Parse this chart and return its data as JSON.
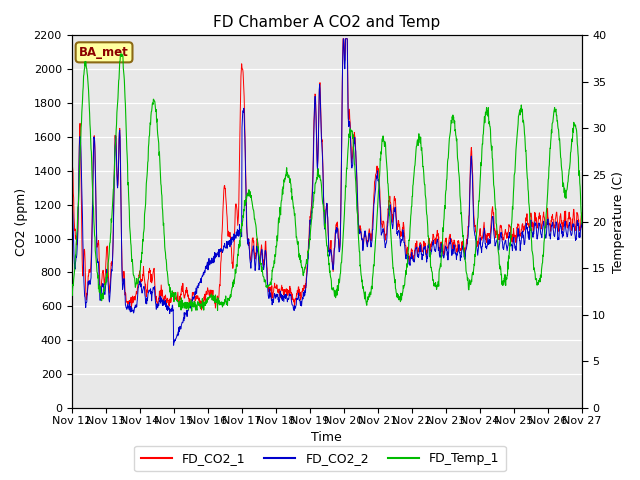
{
  "title": "FD Chamber A CO2 and Temp",
  "xlabel": "Time",
  "ylabel_left": "CO2 (ppm)",
  "ylabel_right": "Temperature (C)",
  "xlim": [
    0,
    360
  ],
  "ylim_left": [
    0,
    2200
  ],
  "ylim_right": [
    0,
    40
  ],
  "yticks_left": [
    0,
    200,
    400,
    600,
    800,
    1000,
    1200,
    1400,
    1600,
    1800,
    2000,
    2200
  ],
  "yticks_right": [
    0,
    5,
    10,
    15,
    20,
    25,
    30,
    35,
    40
  ],
  "xtick_labels": [
    "Nov 12",
    "Nov 13",
    "Nov 14",
    "Nov 15",
    "Nov 16",
    "Nov 17",
    "Nov 18",
    "Nov 19",
    "Nov 20",
    "Nov 21",
    "Nov 22",
    "Nov 23",
    "Nov 24",
    "Nov 25",
    "Nov 26",
    "Nov 27"
  ],
  "xtick_positions": [
    0,
    24,
    48,
    72,
    96,
    120,
    144,
    168,
    192,
    216,
    240,
    264,
    288,
    312,
    336,
    360
  ],
  "color_co2_1": "#ff0000",
  "color_co2_2": "#0000cc",
  "color_temp": "#00bb00",
  "background_color": "#ffffff",
  "plot_bg_color": "#e8e8e8",
  "ba_met_label": "BA_met",
  "legend_labels": [
    "FD_CO2_1",
    "FD_CO2_2",
    "FD_Temp_1"
  ],
  "title_fontsize": 11,
  "axis_fontsize": 9,
  "tick_fontsize": 8
}
